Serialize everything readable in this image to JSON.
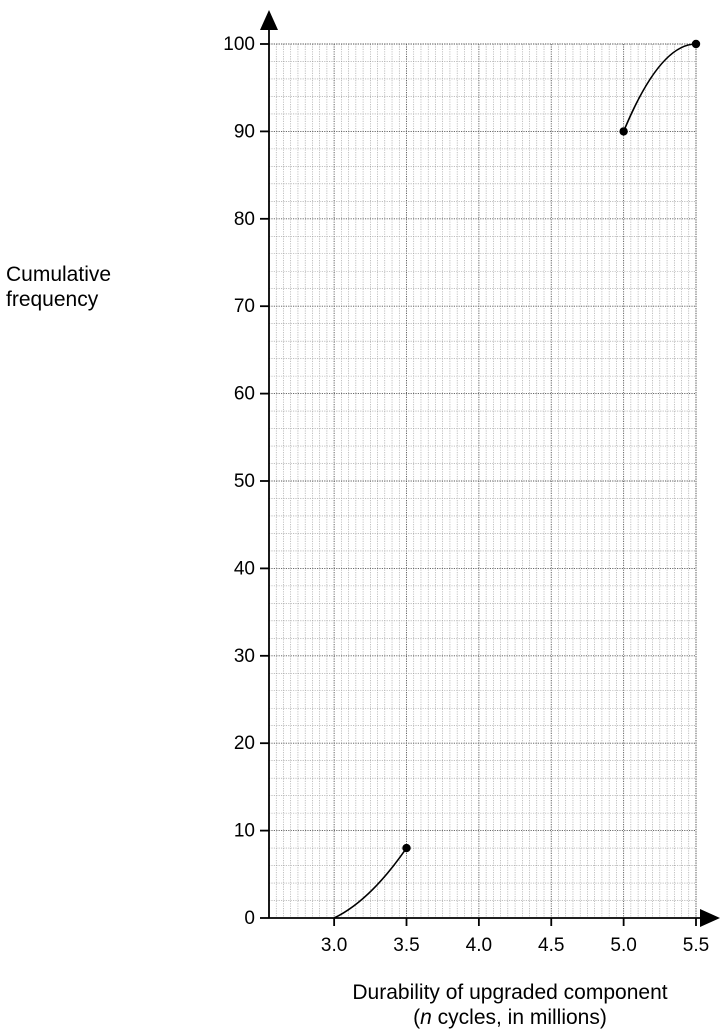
{
  "chart_data": {
    "type": "line",
    "title": "",
    "ylabel_line1": "Cumulative",
    "ylabel_line2": "frequency",
    "xlabel_line1": "Durability of upgraded component",
    "xlabel_line2_italic": "n",
    "xlabel_line2_rest": " cycles, in millions)",
    "xlabel_line2_open": "(",
    "xlim": [
      2.55,
      5.5
    ],
    "ylim": [
      0,
      100
    ],
    "x_ticks": [
      "3.0",
      "3.5",
      "4.0",
      "4.5",
      "5.0",
      "5.5"
    ],
    "x_tick_values": [
      3.0,
      3.5,
      4.0,
      4.5,
      5.0,
      5.5
    ],
    "y_ticks": [
      "0",
      "10",
      "20",
      "30",
      "40",
      "50",
      "60",
      "70",
      "80",
      "90",
      "100"
    ],
    "y_tick_values": [
      0,
      10,
      20,
      30,
      40,
      50,
      60,
      70,
      80,
      90,
      100
    ],
    "grid": true,
    "series": [
      {
        "points": [
          [
            3.0,
            0
          ],
          [
            3.25,
            3
          ],
          [
            3.5,
            8
          ]
        ],
        "markers": [
          [
            3.5,
            8
          ]
        ]
      },
      {
        "points": [
          [
            5.0,
            90
          ],
          [
            5.25,
            97.5
          ],
          [
            5.5,
            100
          ]
        ],
        "markers": [
          [
            5.0,
            90
          ],
          [
            5.5,
            100
          ]
        ]
      }
    ],
    "colors": {
      "line": "#000000",
      "grid_fine": "#9a9a9a",
      "grid_major": "#555555"
    }
  }
}
